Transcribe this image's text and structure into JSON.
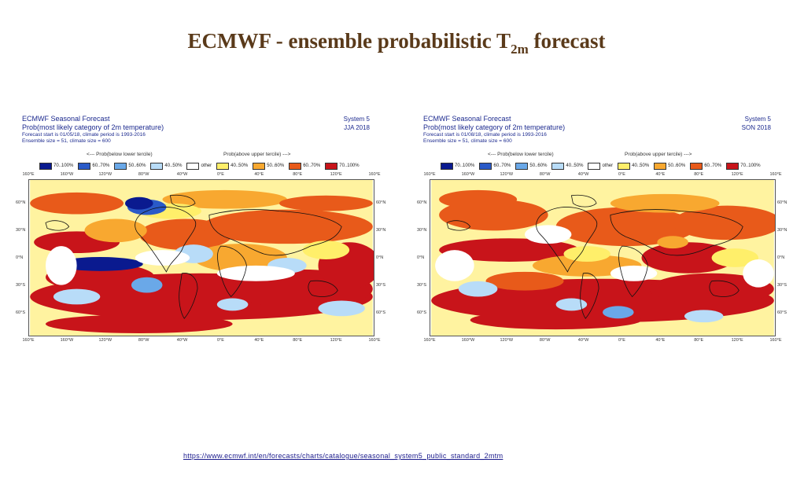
{
  "title": {
    "prefix": "ECMWF - ensemble probabilistic T",
    "subscript": "2m",
    "suffix": " forecast"
  },
  "panels": [
    {
      "header_line1": "ECMWF Seasonal Forecast",
      "header_line2": "Prob(most likely category of 2m temperature)",
      "header_line3": "Forecast start is 01/05/18, climate period is 1993-2016",
      "header_line4": "Ensemble size = 51, climate size = 600",
      "system": "System 5",
      "period": "JJA 2018",
      "lower_label": "<--- Prob(below lower tercile)",
      "upper_label": "Prob(above upper tercile) --->"
    },
    {
      "header_line1": "ECMWF Seasonal Forecast",
      "header_line2": "Prob(most likely category of 2m temperature)",
      "header_line3": "Forecast start is 01/08/18, climate period is 1993-2016",
      "header_line4": "Ensemble size = 51, climate size = 600",
      "system": "System 5",
      "period": "SON 2018",
      "lower_label": "<--- Prob(below lower tercile)",
      "upper_label": "Prob(above upper tercile) --->"
    }
  ],
  "legend": [
    {
      "label": "70..100%",
      "color": "#0a1a8f"
    },
    {
      "label": "60..70%",
      "color": "#2a5ac8"
    },
    {
      "label": "50..60%",
      "color": "#6aa8e8"
    },
    {
      "label": "40..50%",
      "color": "#b8dcf8"
    },
    {
      "label": "other",
      "color": "#ffffff"
    },
    {
      "label": "40..50%",
      "color": "#ffef6a"
    },
    {
      "label": "50..60%",
      "color": "#f8a830"
    },
    {
      "label": "60..70%",
      "color": "#e85a1a"
    },
    {
      "label": "70..100%",
      "color": "#c8141a"
    }
  ],
  "lon_ticks": [
    "160°E",
    "160°W",
    "120°W",
    "80°W",
    "40°W",
    "0°E",
    "40°E",
    "80°E",
    "120°E",
    "160°E"
  ],
  "lat_ticks": [
    "60°N",
    "30°N",
    "0°N",
    "30°S",
    "60°S"
  ],
  "url": "https://www.ecmwf.int/en/forecasts/charts/catalogue/seasonal_system5_public_standard_2mtm"
}
